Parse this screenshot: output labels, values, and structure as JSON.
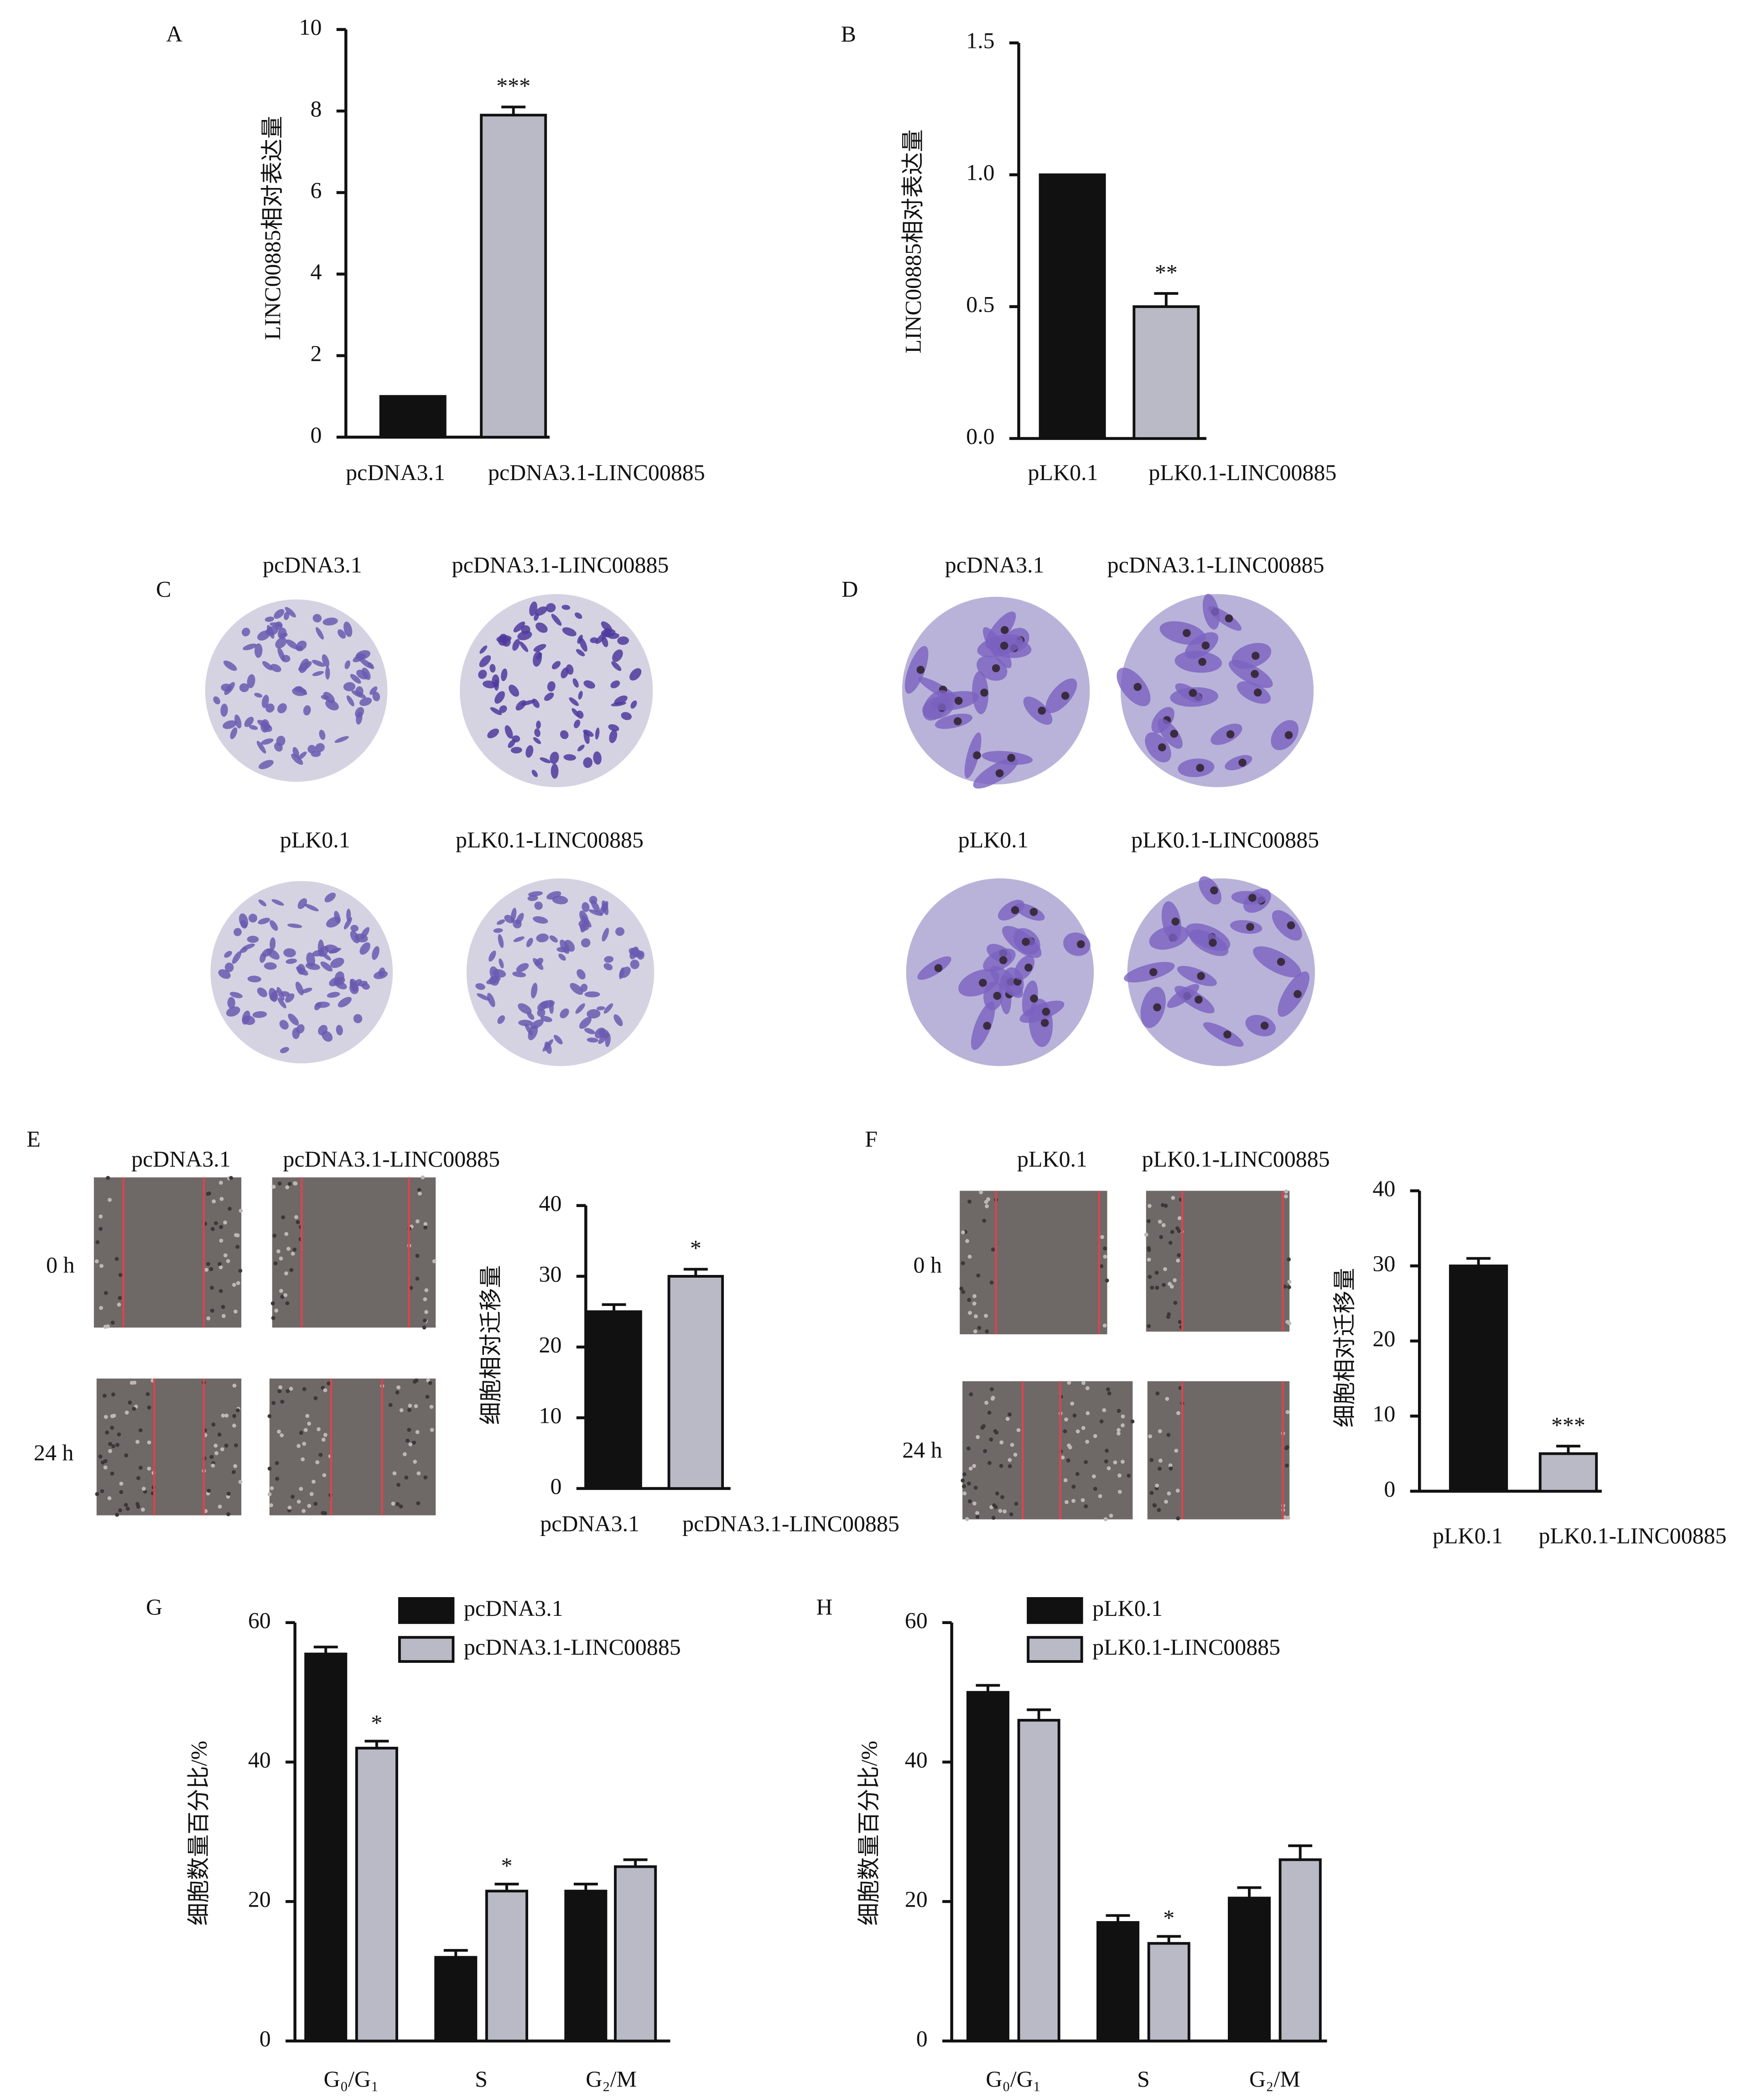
{
  "chart_data": [
    {
      "type": "bar",
      "label": "A",
      "y_label": "LINC00885相对表达量",
      "categories": [
        "pcDNA3.1",
        "pcDNA3.1-LINC00885"
      ],
      "values": [
        1,
        7.9
      ],
      "errors": [
        0,
        0.2
      ],
      "colors": [
        "#111111",
        "#b9bac6"
      ],
      "ylim": [
        0,
        10
      ],
      "yticks": [
        0,
        2,
        4,
        6,
        8,
        10
      ],
      "annotations": [
        {
          "text": "***",
          "category": "pcDNA3.1-LINC00885"
        }
      ]
    },
    {
      "type": "bar",
      "label": "B",
      "y_label": "LINC00885相对表达量",
      "categories": [
        "pLK0.1",
        "pLK0.1-LINC00885"
      ],
      "values": [
        1.0,
        0.5
      ],
      "errors": [
        0,
        0.05
      ],
      "colors": [
        "#111111",
        "#b9bac6"
      ],
      "ylim": [
        0,
        1.5
      ],
      "yticks": [
        {
          "value": 0,
          "label": "0.0"
        },
        0.5,
        {
          "value": 1,
          "label": "1.0"
        },
        1.5
      ],
      "annotations": [
        {
          "text": "**",
          "category": "pLK0.1-LINC00885"
        }
      ]
    },
    {
      "type": "bar",
      "y_label": "细胞相对迁移量",
      "categories": [
        "pcDNA3.1",
        "pcDNA3.1-LINC00885"
      ],
      "values": [
        25,
        30
      ],
      "errors": [
        1,
        1
      ],
      "colors": [
        "#111111",
        "#b9bac6"
      ],
      "ylim": [
        0,
        40
      ],
      "yticks": [
        0,
        10,
        20,
        30,
        40
      ],
      "annotations": [
        {
          "text": "*",
          "category": "pcDNA3.1-LINC00885"
        }
      ]
    },
    {
      "type": "bar",
      "y_label": "细胞相对迁移量",
      "categories": [
        "pLK0.1",
        "pLK0.1-LINC00885"
      ],
      "values": [
        30,
        5
      ],
      "errors": [
        1,
        1
      ],
      "colors": [
        "#111111",
        "#b9bac6"
      ],
      "ylim": [
        0,
        40
      ],
      "yticks": [
        0,
        10,
        20,
        30,
        40
      ],
      "annotations": [
        {
          "text": "***",
          "category": "pLK0.1-LINC00885"
        }
      ]
    },
    {
      "type": "grouped_bar",
      "label": "G",
      "y_label": "细胞数量百分比/%",
      "categories": [
        "G₀/G₁",
        "S",
        "G₂/M"
      ],
      "series": [
        {
          "name": "pcDNA3.1",
          "color": "#111111",
          "values": [
            55.5,
            12,
            21.5
          ],
          "errors": [
            1,
            1,
            1
          ]
        },
        {
          "name": "pcDNA3.1-LINC00885",
          "color": "#b9bac6",
          "values": [
            42,
            21.5,
            25
          ],
          "errors": [
            1,
            1,
            1
          ]
        }
      ],
      "ylim": [
        0,
        60
      ],
      "yticks": [
        0,
        20,
        40,
        60
      ],
      "legend": "top-left",
      "annotations": [
        {
          "text": "*",
          "series": "pcDNA3.1-LINC00885",
          "category": "G₀/G₁"
        },
        {
          "text": "*",
          "series": "pcDNA3.1-LINC00885",
          "category": "S"
        }
      ]
    },
    {
      "type": "grouped_bar",
      "label": "H",
      "y_label": "细胞数量百分比/%",
      "categories": [
        "G₀/G₁",
        "S",
        "G₂/M"
      ],
      "series": [
        {
          "name": "pLK0.1",
          "color": "#111111",
          "values": [
            50,
            17,
            20.5
          ],
          "errors": [
            1,
            1,
            1.5
          ]
        },
        {
          "name": "pLK0.1-LINC00885",
          "color": "#b9bac6",
          "values": [
            46,
            14,
            26
          ],
          "errors": [
            1.5,
            1,
            2
          ]
        }
      ],
      "ylim": [
        0,
        60
      ],
      "yticks": [
        0,
        20,
        40,
        60
      ],
      "legend": "top-left",
      "annotations": [
        {
          "text": "*",
          "series": "pLK0.1-LINC00885",
          "category": "S"
        }
      ]
    }
  ],
  "image_panels": [
    {
      "label": "C",
      "titles": [
        [
          "pcDNA3.1",
          "pcDNA3.1-LINC00885"
        ],
        [
          "pLK0.1",
          "pLK0.1-LINC00885"
        ]
      ]
    },
    {
      "label": "D",
      "titles": [
        [
          "pcDNA3.1",
          "pcDNA3.1-LINC00885"
        ],
        [
          "pLK0.1",
          "pLK0.1-LINC00885"
        ]
      ]
    },
    {
      "label": "E",
      "titles": [
        "pcDNA3.1",
        "pcDNA3.1-LINC00885"
      ],
      "rows": [
        "0 h",
        "24 h"
      ]
    },
    {
      "label": "F",
      "titles": [
        "pLK0.1",
        "pLK0.1-LINC00885"
      ],
      "rows": [
        "0 h",
        "24 h"
      ]
    }
  ]
}
